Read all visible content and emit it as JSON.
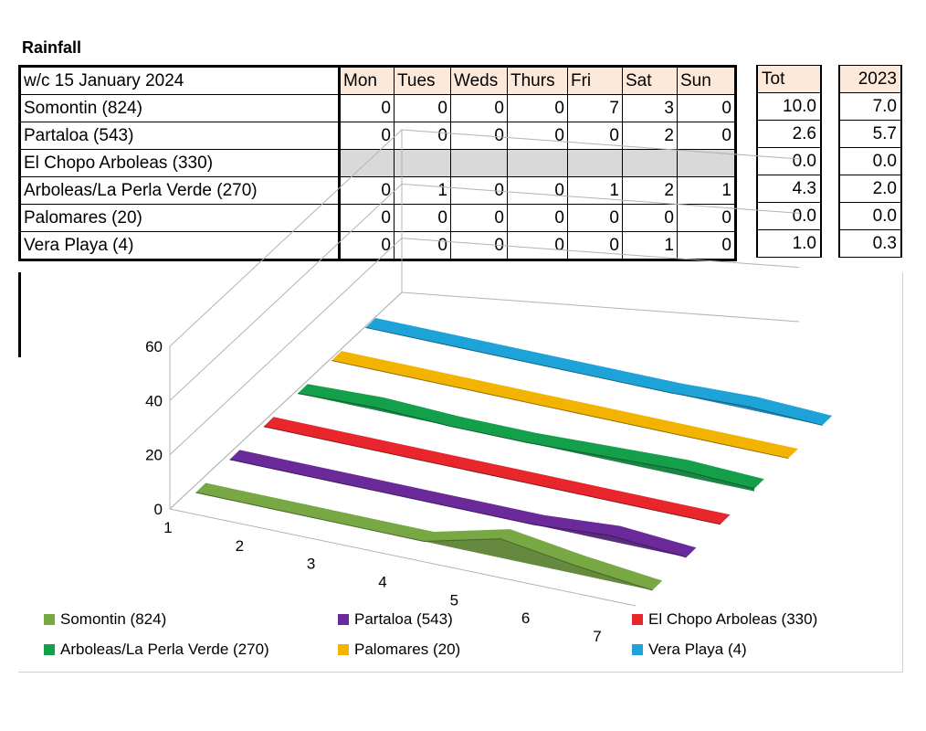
{
  "title": "Rainfall",
  "table": {
    "week_label": "w/c 15 January 2024",
    "days": [
      "Mon",
      "Tues",
      "Weds",
      "Thurs",
      "Fri",
      "Sat",
      "Sun"
    ],
    "tot_header": "Tot",
    "prev_header": "2023",
    "rows": [
      {
        "name": "Somontin (824)",
        "days": [
          "0",
          "0",
          "0",
          "0",
          "7",
          "3",
          "0"
        ],
        "tot": "10.0",
        "prev": "7.0"
      },
      {
        "name": "Partaloa (543)",
        "days": [
          "0",
          "0",
          "0",
          "0",
          "0",
          "2",
          "0"
        ],
        "tot": "2.6",
        "prev": "5.7"
      },
      {
        "name": "El Chopo Arboleas (330)",
        "days": [
          "",
          "",
          "",
          "",
          "",
          "",
          ""
        ],
        "tot": "0.0",
        "prev": "0.0"
      },
      {
        "name": "Arboleas/La Perla Verde (270)",
        "days": [
          "0",
          "1",
          "0",
          "0",
          "1",
          "2",
          "1"
        ],
        "tot": "4.3",
        "prev": "2.0"
      },
      {
        "name": "Palomares (20)",
        "days": [
          "0",
          "0",
          "0",
          "0",
          "0",
          "0",
          "0"
        ],
        "tot": "0.0",
        "prev": "0.0"
      },
      {
        "name": "Vera Playa (4)",
        "days": [
          "0",
          "0",
          "0",
          "0",
          "0",
          "1",
          "0"
        ],
        "tot": "1.0",
        "prev": "0.3"
      }
    ]
  },
  "chart_data": {
    "type": "area",
    "style": "3d",
    "categories": [
      "1",
      "2",
      "3",
      "4",
      "5",
      "6",
      "7"
    ],
    "ylim": [
      0,
      60
    ],
    "yticks": [
      "0",
      "20",
      "40",
      "60"
    ],
    "grid": true,
    "legend_position": "bottom",
    "series": [
      {
        "name": "Somontin (824)",
        "color": "#77a844",
        "values": [
          0,
          0,
          0,
          0,
          7,
          3,
          0
        ]
      },
      {
        "name": "Partaloa (543)",
        "color": "#6a2a9a",
        "values": [
          0,
          0,
          0,
          0,
          0,
          2,
          0
        ]
      },
      {
        "name": "El Chopo Arboleas (330)",
        "color": "#e8262b",
        "values": [
          0,
          0,
          0,
          0,
          0,
          0,
          0
        ]
      },
      {
        "name": "Arboleas/La Perla Verde (270)",
        "color": "#14a04a",
        "values": [
          0,
          1,
          0,
          0,
          1,
          2,
          1
        ]
      },
      {
        "name": "Palomares (20)",
        "color": "#f2b400",
        "values": [
          0,
          0,
          0,
          0,
          0,
          0,
          0
        ]
      },
      {
        "name": "Vera Playa (4)",
        "color": "#1ea3d8",
        "values": [
          0,
          0,
          0,
          0,
          0,
          1,
          0
        ]
      }
    ]
  }
}
